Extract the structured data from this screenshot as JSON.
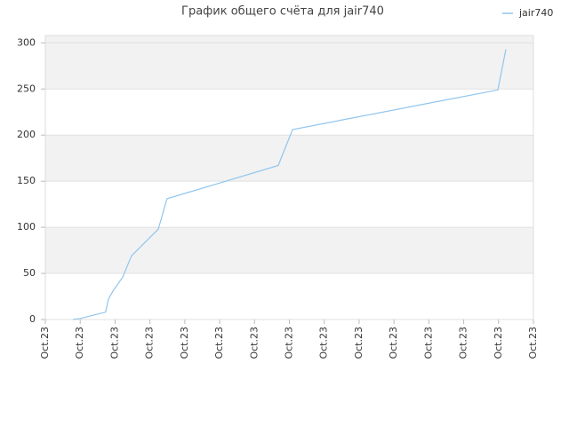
{
  "chart_data": {
    "type": "line",
    "title": "График общего счёта для jair740",
    "series": [
      {
        "name": "jair740",
        "color": "#90c5ee",
        "x": [
          0.79,
          1.0,
          1.73,
          1.81,
          1.94,
          2.22,
          2.47,
          3.24,
          3.49,
          6.68,
          7.09,
          12.98,
          13.21
        ],
        "values": [
          0,
          1,
          8,
          22,
          31,
          46,
          69,
          98,
          131,
          167,
          206,
          249,
          293
        ]
      }
    ],
    "xlim": [
      0,
      14
    ],
    "xticks": [
      {
        "value": 0,
        "label": "Oct.23"
      },
      {
        "value": 1,
        "label": "Oct.23"
      },
      {
        "value": 2,
        "label": "Oct.23"
      },
      {
        "value": 3,
        "label": "Oct.23"
      },
      {
        "value": 4,
        "label": "Oct.23"
      },
      {
        "value": 5,
        "label": "Oct.23"
      },
      {
        "value": 6,
        "label": "Oct.23"
      },
      {
        "value": 7,
        "label": "Oct.23"
      },
      {
        "value": 8,
        "label": "Oct.23"
      },
      {
        "value": 9,
        "label": "Oct.23"
      },
      {
        "value": 10,
        "label": "Oct.23"
      },
      {
        "value": 11,
        "label": "Oct.23"
      },
      {
        "value": 12,
        "label": "Oct.23"
      },
      {
        "value": 13,
        "label": "Oct.23"
      },
      {
        "value": 14,
        "label": "Oct.23"
      }
    ],
    "ylim": [
      0,
      308
    ],
    "yticks": [
      0,
      50,
      100,
      150,
      200,
      250,
      300
    ],
    "grid": true,
    "legend": "top-right"
  }
}
